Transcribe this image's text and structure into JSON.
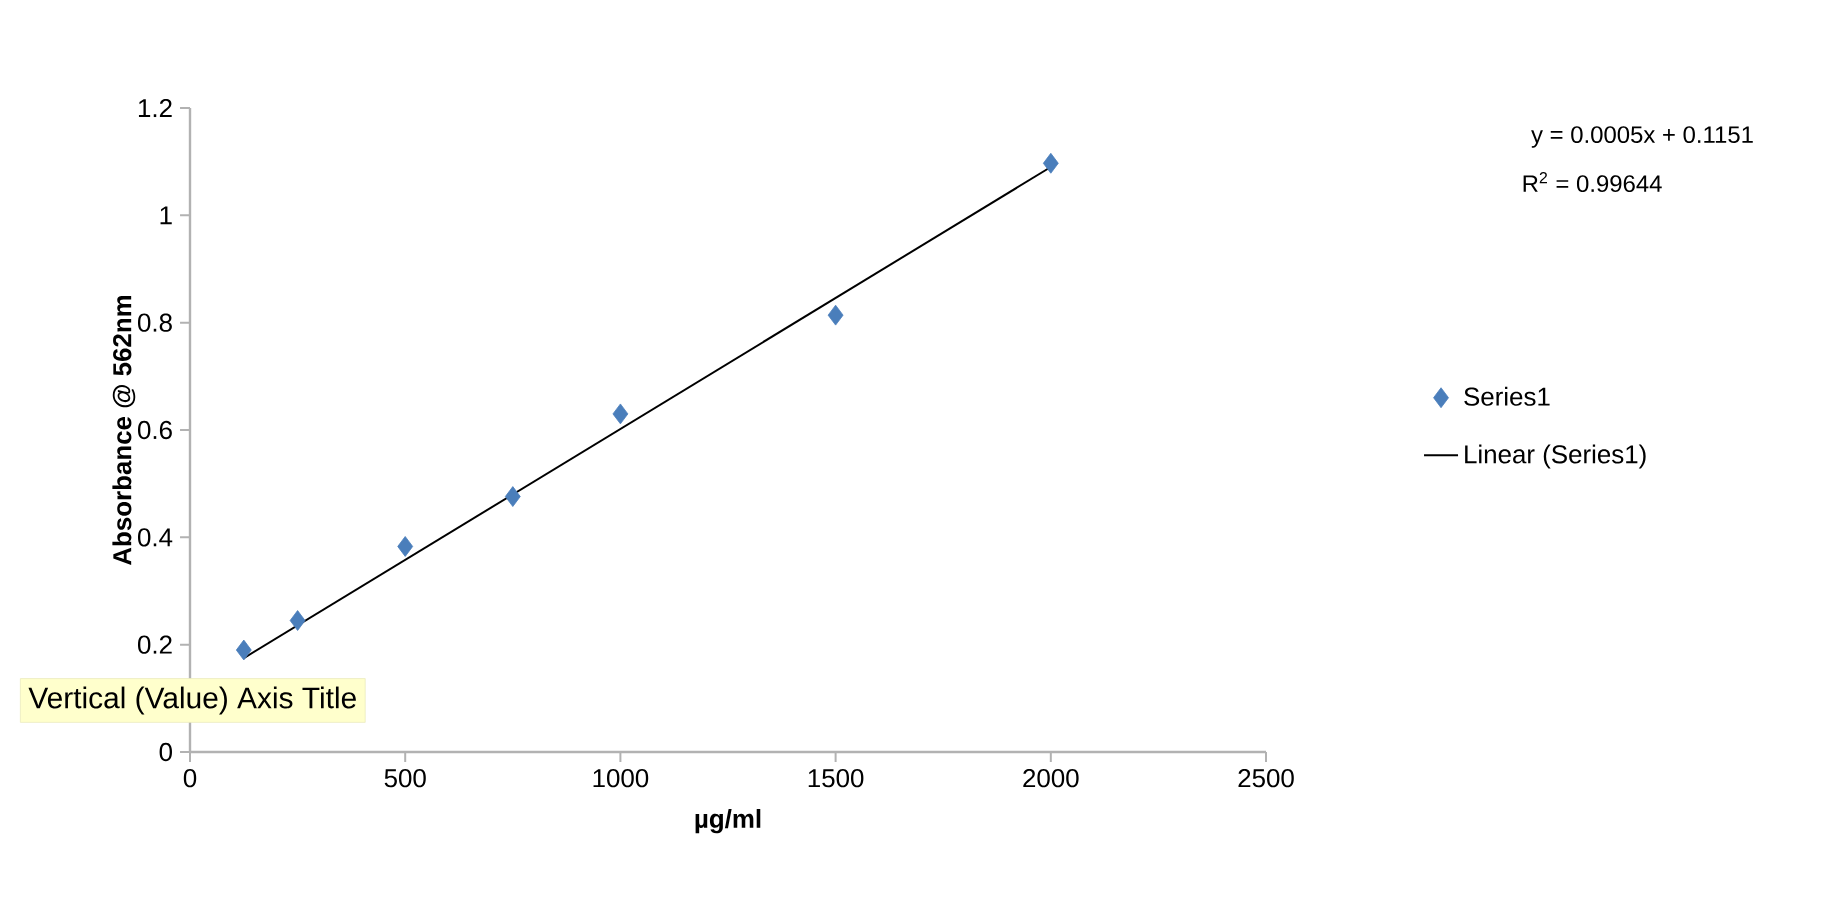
{
  "chart_data": {
    "type": "scatter",
    "xlabel": "µg/ml",
    "ylabel": "Absorbance @ 562nm",
    "x": [
      125,
      250,
      500,
      750,
      1000,
      1500,
      2000
    ],
    "series": [
      {
        "name": "Series1",
        "color": "#4a7ebb",
        "marker": "diamond",
        "values": [
          0.19,
          0.245,
          0.383,
          0.476,
          0.63,
          0.814,
          1.097
        ]
      },
      {
        "name": "Linear (Series1)",
        "type": "line",
        "color": "#000000",
        "marker": "none",
        "line_style": "solid",
        "x": [
          125,
          2000
        ],
        "values": [
          0.175,
          1.09
        ]
      }
    ],
    "xlim": [
      0,
      2500
    ],
    "xticks": [
      0,
      500,
      1000,
      1500,
      2000,
      2500
    ],
    "ylim": [
      0,
      1.2
    ],
    "yticks": [
      0,
      0.2,
      0.4,
      0.6,
      0.8,
      1,
      1.2
    ],
    "grid": false,
    "legend": "right",
    "annotations": [
      "y = 0.0005x + 0.1151",
      "R$^{2}$ = 0.99644",
      "Vertical (Value) Axis Title"
    ]
  }
}
